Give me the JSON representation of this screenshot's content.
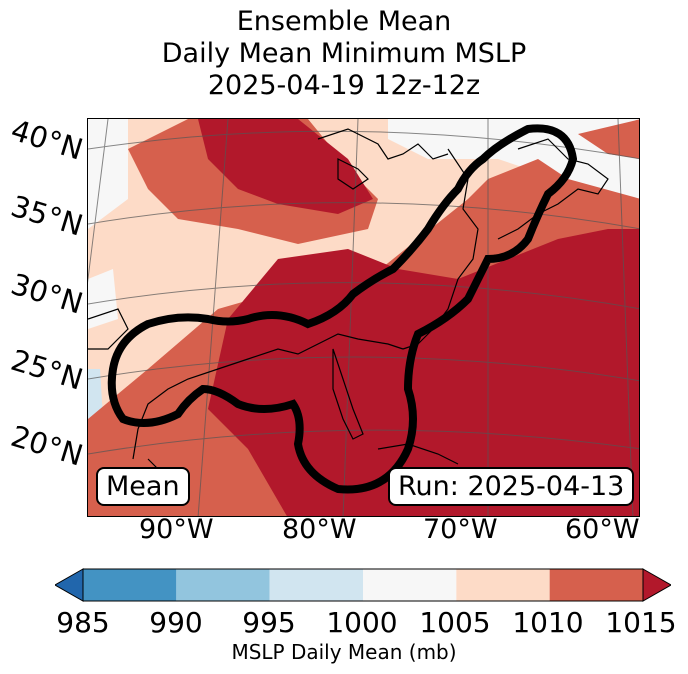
{
  "title": {
    "line1": "Ensemble Mean",
    "line2": "Daily Mean Minimum MSLP",
    "line3": "2025-04-19 12z-12z"
  },
  "map": {
    "lat_labels": [
      "40°N",
      "35°N",
      "30°N",
      "25°N",
      "20°N"
    ],
    "lon_labels": [
      "90°W",
      "80°W",
      "70°W",
      "60°W"
    ],
    "mean_badge": "Mean",
    "run_badge": "Run: 2025-04-13",
    "contour_color": "#000000"
  },
  "colorbar": {
    "levels": [
      "985",
      "990",
      "995",
      "1000",
      "1005",
      "1010",
      "1015"
    ],
    "colors": [
      "#2166ac",
      "#4393c3",
      "#92c5de",
      "#d1e5f0",
      "#f7f7f7",
      "#fddbc7",
      "#d6604d",
      "#b2182b"
    ],
    "label": "MSLP Daily Mean (mb)",
    "extend": "both"
  }
}
